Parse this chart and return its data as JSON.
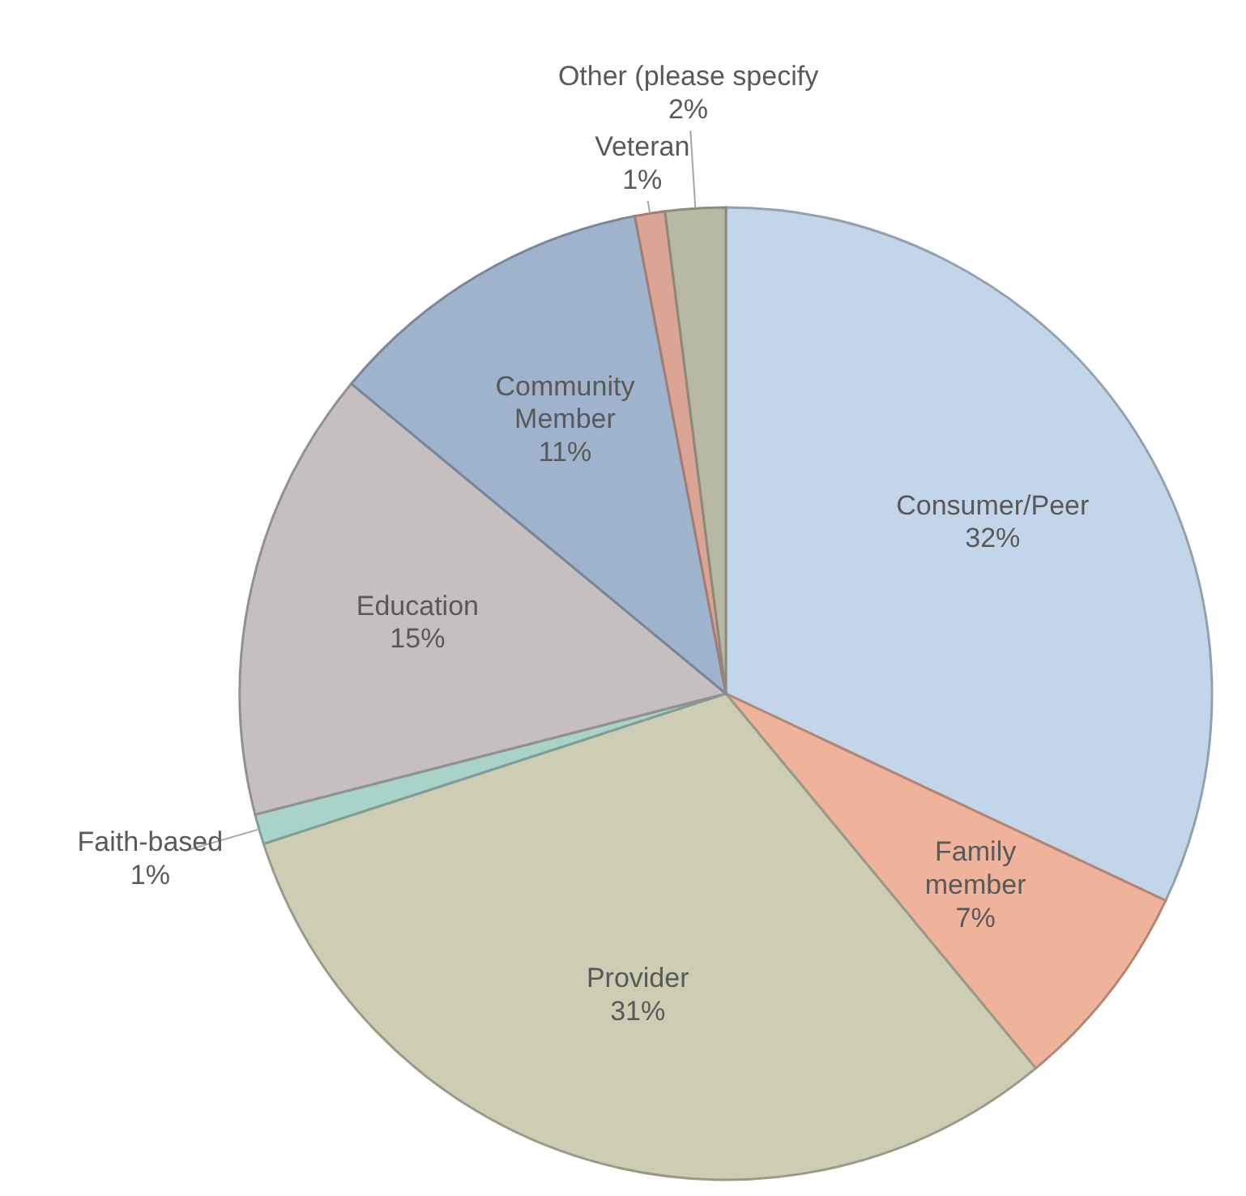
{
  "chart_data": {
    "type": "pie",
    "categories": [
      "Consumer/Peer",
      "Family member",
      "Provider",
      "Faith-based",
      "Education",
      "Community Member",
      "Veteran",
      "Other (please specify"
    ],
    "values": [
      32,
      7,
      31,
      1,
      15,
      11,
      1,
      2
    ],
    "colors": [
      "#c3d6e9",
      "#efb39b",
      "#cdcdb3",
      "#a9d2c9",
      "#c6bfbf",
      "#9fb3cd",
      "#dba595",
      "#b8b9a2"
    ],
    "value_labels": [
      "32%",
      "7%",
      "31%",
      "1%",
      "15%",
      "11%",
      "1%",
      "2%"
    ]
  }
}
